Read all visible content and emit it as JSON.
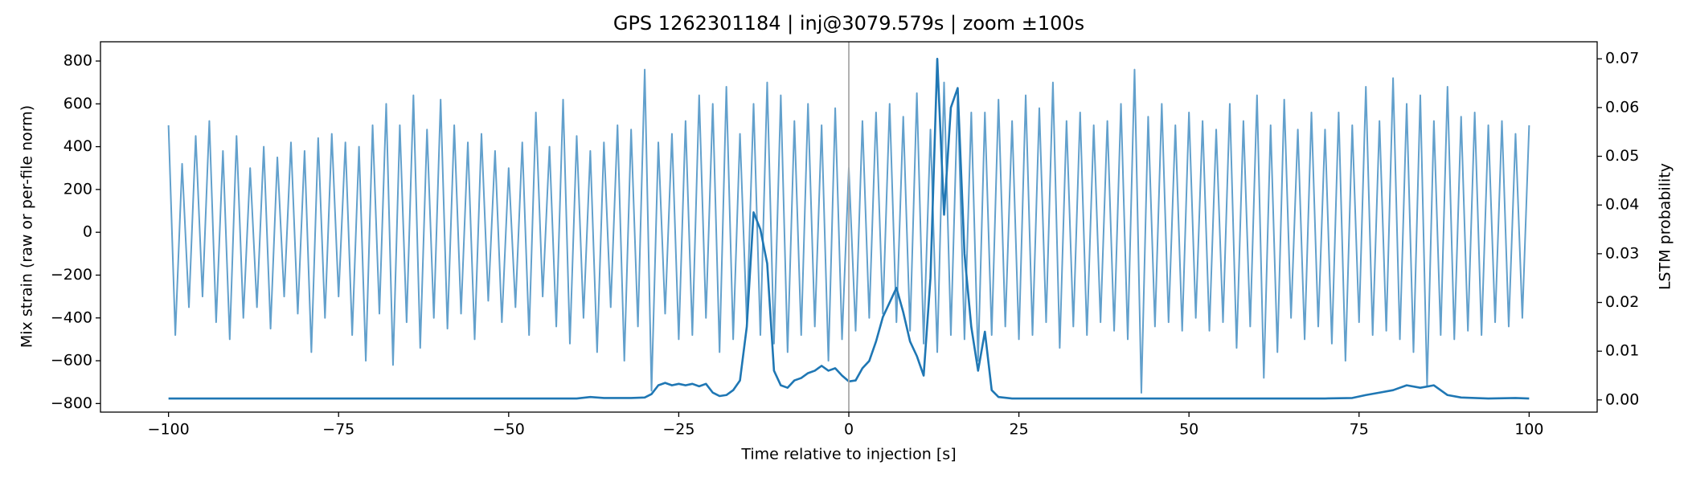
{
  "chart_data": {
    "type": "line",
    "title": "GPS 1262301184 | inj@3079.579s | zoom ±100s",
    "xlabel": "Time relative to injection [s]",
    "ylabel": "Mix strain (raw or per-file norm)",
    "y2label": "LSTM probability",
    "xlim": [
      -110,
      110
    ],
    "xticks": [
      {
        "value": -100,
        "label": "−100"
      },
      {
        "value": -75,
        "label": "−75"
      },
      {
        "value": -50,
        "label": "−50"
      },
      {
        "value": -25,
        "label": "−25"
      },
      0,
      25,
      50,
      75,
      100
    ],
    "ylim": [
      -840,
      890
    ],
    "yticks": [
      {
        "value": -800,
        "label": "−800"
      },
      {
        "value": -600,
        "label": "−600"
      },
      {
        "value": -400,
        "label": "−400"
      },
      {
        "value": -200,
        "label": "−200"
      },
      0,
      200,
      400,
      600,
      800
    ],
    "y2lim": [
      -0.0025,
      0.0735
    ],
    "y2ticks": [
      {
        "value": 0,
        "label": "0.00"
      },
      {
        "value": 0.01,
        "label": "0.01"
      },
      {
        "value": 0.02,
        "label": "0.02"
      },
      {
        "value": 0.03,
        "label": "0.03"
      },
      {
        "value": 0.04,
        "label": "0.04"
      },
      {
        "value": 0.05,
        "label": "0.05"
      },
      {
        "value": 0.06,
        "label": "0.06"
      },
      {
        "value": 0.07,
        "label": "0.07"
      }
    ],
    "vline": 0,
    "vline_color": "#aaaaaa",
    "series": [
      {
        "color": "#62a0cc",
        "axis": "y",
        "x": [
          -100,
          -99,
          -98,
          -97,
          -96,
          -95,
          -94,
          -93,
          -92,
          -91,
          -90,
          -89,
          -88,
          -87,
          -86,
          -85,
          -84,
          -83,
          -82,
          -81,
          -80,
          -79,
          -78,
          -77,
          -76,
          -75,
          -74,
          -73,
          -72,
          -71,
          -70,
          -69,
          -68,
          -67,
          -66,
          -65,
          -64,
          -63,
          -62,
          -61,
          -60,
          -59,
          -58,
          -57,
          -56,
          -55,
          -54,
          -53,
          -52,
          -51,
          -50,
          -49,
          -48,
          -47,
          -46,
          -45,
          -44,
          -43,
          -42,
          -41,
          -40,
          -39,
          -38,
          -37,
          -36,
          -35,
          -34,
          -33,
          -32,
          -31,
          -30,
          -29,
          -28,
          -27,
          -26,
          -25,
          -24,
          -23,
          -22,
          -21,
          -20,
          -19,
          -18,
          -17,
          -16,
          -15,
          -14,
          -13,
          -12,
          -11,
          -10,
          -9,
          -8,
          -7,
          -6,
          -5,
          -4,
          -3,
          -2,
          -1,
          0,
          1,
          2,
          3,
          4,
          5,
          6,
          7,
          8,
          9,
          10,
          11,
          12,
          13,
          14,
          15,
          16,
          17,
          18,
          19,
          20,
          21,
          22,
          23,
          24,
          25,
          26,
          27,
          28,
          29,
          30,
          31,
          32,
          33,
          34,
          35,
          36,
          37,
          38,
          39,
          40,
          41,
          42,
          43,
          44,
          45,
          46,
          47,
          48,
          49,
          50,
          51,
          52,
          53,
          54,
          55,
          56,
          57,
          58,
          59,
          60,
          61,
          62,
          63,
          64,
          65,
          66,
          67,
          68,
          69,
          70,
          71,
          72,
          73,
          74,
          75,
          76,
          77,
          78,
          79,
          80,
          81,
          82,
          83,
          84,
          85,
          86,
          87,
          88,
          89,
          90,
          91,
          92,
          93,
          94,
          95,
          96,
          97,
          98,
          99,
          100
        ],
        "values": [
          500,
          -480,
          320,
          -350,
          450,
          -300,
          520,
          -420,
          380,
          -500,
          450,
          -400,
          300,
          -350,
          400,
          -450,
          350,
          -300,
          420,
          -380,
          380,
          -560,
          440,
          -400,
          460,
          -300,
          420,
          -480,
          400,
          -600,
          500,
          -380,
          600,
          -620,
          500,
          -420,
          640,
          -540,
          480,
          -400,
          620,
          -450,
          500,
          -380,
          420,
          -500,
          460,
          -320,
          380,
          -420,
          300,
          -350,
          420,
          -480,
          560,
          -300,
          400,
          -440,
          620,
          -520,
          450,
          -400,
          380,
          -560,
          420,
          -350,
          500,
          -600,
          480,
          -440,
          760,
          -740,
          420,
          -380,
          460,
          -500,
          520,
          -480,
          640,
          -400,
          600,
          -560,
          680,
          -500,
          460,
          -420,
          600,
          -480,
          700,
          -520,
          640,
          -560,
          520,
          -480,
          600,
          -440,
          500,
          -600,
          580,
          -500,
          300,
          -460,
          520,
          -400,
          560,
          -380,
          600,
          -420,
          540,
          -460,
          650,
          -520,
          480,
          -560,
          700,
          -480,
          640,
          -500,
          560,
          -600,
          560,
          -480,
          620,
          -440,
          520,
          -500,
          640,
          -480,
          580,
          -420,
          700,
          -540,
          520,
          -440,
          560,
          -480,
          500,
          -420,
          520,
          -460,
          600,
          -500,
          760,
          -750,
          540,
          -440,
          600,
          -420,
          500,
          -460,
          560,
          -400,
          520,
          -460,
          480,
          -420,
          600,
          -540,
          520,
          -440,
          640,
          -680,
          500,
          -560,
          620,
          -400,
          480,
          -500,
          560,
          -440,
          480,
          -520,
          560,
          -600,
          500,
          -420,
          680,
          -480,
          520,
          -460,
          720,
          -500,
          600,
          -560,
          640,
          -720,
          520,
          -480,
          680,
          -500,
          540,
          -460,
          560,
          -480,
          500,
          -420,
          520,
          -440,
          460,
          -400,
          500
        ]
      },
      {
        "color": "#1f77b4",
        "axis": "y2",
        "x": [
          -100,
          -80,
          -60,
          -40,
          -38,
          -36,
          -34,
          -32,
          -30,
          -29,
          -28,
          -27,
          -26,
          -25,
          -24,
          -23,
          -22,
          -21,
          -20,
          -19,
          -18,
          -17,
          -16,
          -15,
          -14,
          -13,
          -12,
          -11,
          -10,
          -9,
          -8,
          -7,
          -6,
          -5,
          -4,
          -3,
          -2,
          -1,
          0,
          1,
          2,
          3,
          4,
          5,
          6,
          7,
          8,
          9,
          10,
          11,
          12,
          13,
          14,
          15,
          16,
          17,
          18,
          19,
          20,
          21,
          22,
          24,
          26,
          30,
          40,
          50,
          60,
          70,
          74,
          76,
          78,
          80,
          82,
          84,
          86,
          88,
          90,
          94,
          98,
          100
        ],
        "values": [
          0.0003,
          0.0003,
          0.0003,
          0.0003,
          0.0006,
          0.0004,
          0.0004,
          0.0004,
          0.0005,
          0.0012,
          0.003,
          0.0035,
          0.003,
          0.0033,
          0.003,
          0.0033,
          0.0028,
          0.0033,
          0.0015,
          0.0008,
          0.001,
          0.002,
          0.004,
          0.015,
          0.0385,
          0.035,
          0.028,
          0.006,
          0.003,
          0.0025,
          0.004,
          0.0045,
          0.0055,
          0.006,
          0.007,
          0.006,
          0.0065,
          0.005,
          0.0038,
          0.004,
          0.0065,
          0.008,
          0.012,
          0.017,
          0.02,
          0.023,
          0.018,
          0.012,
          0.009,
          0.005,
          0.025,
          0.07,
          0.038,
          0.06,
          0.064,
          0.03,
          0.015,
          0.006,
          0.014,
          0.002,
          0.0006,
          0.0003,
          0.0003,
          0.0003,
          0.0003,
          0.0003,
          0.0003,
          0.0003,
          0.0004,
          0.001,
          0.0015,
          0.002,
          0.003,
          0.0025,
          0.003,
          0.001,
          0.0005,
          0.0003,
          0.0004,
          0.0003
        ]
      }
    ]
  }
}
